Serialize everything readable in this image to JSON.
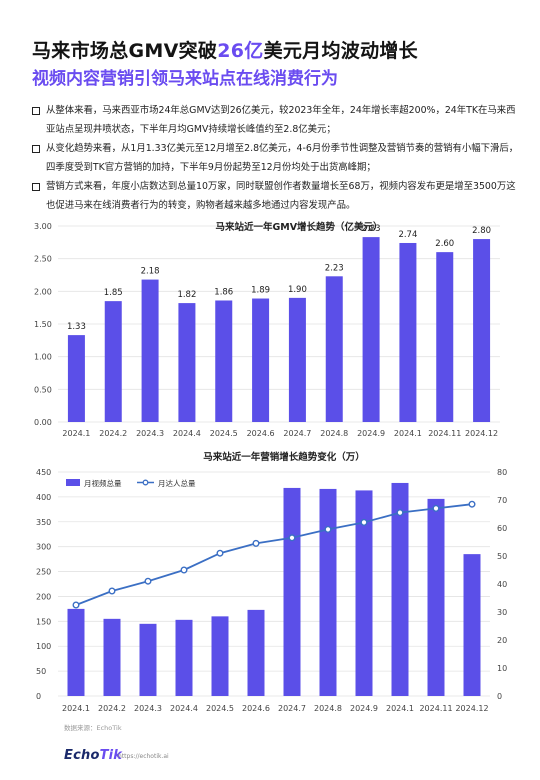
{
  "header": {
    "title_prefix": "马来市场总GMV突破",
    "title_highlight": "26亿",
    "title_suffix": "美元月均波动增长",
    "subtitle": "视频内容营销引领马来站点在线消费行为"
  },
  "bullets": [
    "从整体来看，马来西亚市场24年总GMV达到26亿美元，较2023年全年，24年增长率超200%，24年TK在马来西亚站点呈现井喷状态，下半年月均GMV持续增长峰值约至2.8亿美元；",
    "从变化趋势来看，从1月1.33亿美元至12月增至2.8亿美元，4-6月份季节性调整及营销节奏的营销有小幅下滑后，四季度受到TK官方营销的加持，下半年9月份起势至12月份均处于出货高峰期；",
    "营销方式来看，年度小店数达到总量10万家，同时联盟创作者数量增长至68万，视频内容发布更是增至3500万这也促进马来在线消费者行为的转变，购物者越来越多地通过内容发现产品。"
  ],
  "colors": {
    "accent": "#6a4cf0",
    "bar": "#5b4fe8",
    "line": "#3b6fc4",
    "grid": "#e3e3e3",
    "axis_text": "#444444"
  },
  "chart_data": [
    {
      "type": "bar",
      "title": "马来站近一年GMV增长趋势（亿美元）",
      "categories": [
        "2024.1",
        "2024.2",
        "2024.3",
        "2024.4",
        "2024.5",
        "2024.6",
        "2024.7",
        "2024.8",
        "2024.9",
        "2024.1",
        "2024.11",
        "2024.12"
      ],
      "values": [
        1.33,
        1.85,
        2.18,
        1.82,
        1.86,
        1.89,
        1.9,
        2.23,
        2.83,
        2.74,
        2.6,
        2.8
      ],
      "value_labels": [
        "1.33",
        "1.85",
        "2.18",
        "1.82",
        "1.86",
        "1.89",
        "1.90",
        "2.23",
        "2.83",
        "2.74",
        "2.60",
        "2.80"
      ],
      "y_ticks": [
        "0.00",
        "0.50",
        "1.00",
        "1.50",
        "2.00",
        "2.50",
        "3.00"
      ],
      "ylim": [
        0,
        3
      ],
      "grid": true
    },
    {
      "type": "bar+line",
      "title": "马来站近一年营销增长趋势变化（万）",
      "categories": [
        "2024.1",
        "2024.2",
        "2024.3",
        "2024.4",
        "2024.5",
        "2024.6",
        "2024.7",
        "2024.8",
        "2024.9",
        "2024.1",
        "2024.11",
        "2024.12"
      ],
      "series": [
        {
          "name": "月视频总量",
          "type": "bar",
          "axis": "left",
          "values": [
            175,
            155,
            145,
            153,
            160,
            173,
            418,
            416,
            413,
            428,
            396,
            285
          ]
        },
        {
          "name": "月达人总量",
          "type": "line",
          "axis": "right",
          "values": [
            32.5,
            37.5,
            41,
            45,
            51,
            54.5,
            56.5,
            59.5,
            62,
            65.5,
            67,
            68.5
          ]
        }
      ],
      "y_left_ticks": [
        "0",
        "50",
        "100",
        "150",
        "200",
        "250",
        "300",
        "350",
        "400",
        "450"
      ],
      "ylim_left": [
        0,
        450
      ],
      "y_right_ticks": [
        "0",
        "10",
        "20",
        "30",
        "40",
        "50",
        "60",
        "70",
        "80"
      ],
      "ylim_right": [
        0,
        80
      ],
      "legend_position": "top-left",
      "grid": true
    }
  ],
  "footer": {
    "source": "数据来源：EchoTik",
    "logo_main": "Echo",
    "logo_accent": "Tik",
    "site": "https://echotik.ai"
  }
}
